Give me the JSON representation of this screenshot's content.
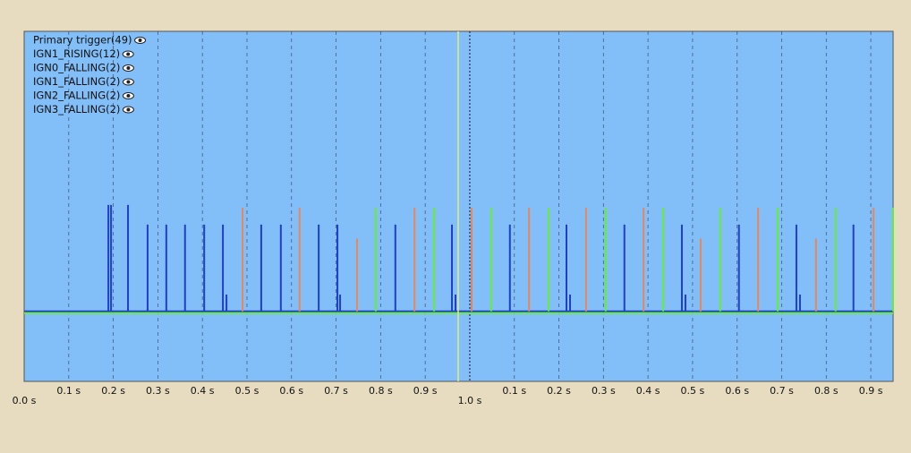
{
  "chart_data": {
    "type": "pulse",
    "xlim": [
      0,
      1.95
    ],
    "ylim": [
      -0.25,
      1
    ],
    "xticks": [
      {
        "value": 0,
        "label": "0.0 s"
      },
      {
        "value": 0.1,
        "label": "0.1 s"
      },
      {
        "value": 0.2,
        "label": "0.2 s"
      },
      {
        "value": 0.3,
        "label": "0.3 s"
      },
      {
        "value": 0.4,
        "label": "0.4 s"
      },
      {
        "value": 0.5,
        "label": "0.5 s"
      },
      {
        "value": 0.6,
        "label": "0.6 s"
      },
      {
        "value": 0.7,
        "label": "0.7 s"
      },
      {
        "value": 0.8,
        "label": "0.8 s"
      },
      {
        "value": 0.9,
        "label": "0.9 s"
      },
      {
        "value": 1.0,
        "label": "1.0 s"
      },
      {
        "value": 1.1,
        "label": "0.1 s"
      },
      {
        "value": 1.2,
        "label": "0.2 s"
      },
      {
        "value": 1.3,
        "label": "0.3 s"
      },
      {
        "value": 1.4,
        "label": "0.4 s"
      },
      {
        "value": 1.5,
        "label": "0.5 s"
      },
      {
        "value": 1.6,
        "label": "0.6 s"
      },
      {
        "value": 1.7,
        "label": "0.7 s"
      },
      {
        "value": 1.8,
        "label": "0.8 s"
      },
      {
        "value": 1.9,
        "label": "0.9 s"
      }
    ],
    "cursor": 0.974,
    "series": [
      {
        "name": "Primary trigger(49)",
        "color": "#1f3fc8",
        "x": [
          0.189,
          0.195,
          0.233,
          0.277,
          0.319,
          0.361,
          0.404,
          0.446,
          0.454,
          0.532,
          0.576,
          0.661,
          0.703,
          0.709,
          0.833,
          0.96,
          0.968,
          1.004,
          1.09,
          1.217,
          1.225,
          1.347,
          1.476,
          1.484,
          1.604,
          1.733,
          1.741,
          1.861
        ],
        "values": [
          0.38,
          0.38,
          0.38,
          0.31,
          0.31,
          0.31,
          0.31,
          0.31,
          0.06,
          0.31,
          0.31,
          0.31,
          0.31,
          0.06,
          0.31,
          0.31,
          0.06,
          0.31,
          0.31,
          0.31,
          0.06,
          0.31,
          0.31,
          0.06,
          0.31,
          0.31,
          0.06,
          0.31
        ]
      },
      {
        "name": "IGN1_RISING(12)",
        "color": "#e8875a",
        "x": [
          0.49,
          0.618,
          0.747,
          0.876,
          1.004,
          1.133,
          1.261,
          1.39,
          1.518,
          1.647,
          1.777,
          1.906
        ],
        "values": [
          0.37,
          0.37,
          0.26,
          0.37,
          0.37,
          0.37,
          0.37,
          0.37,
          0.26,
          0.37,
          0.26,
          0.37
        ]
      },
      {
        "name": "IGN0_FALLING(2)",
        "color": "#66ee33",
        "x": [
          0.789,
          1.305,
          1.821
        ],
        "values": [
          0.37,
          0.37,
          0.37
        ]
      },
      {
        "name": "IGN1_FALLING(2)",
        "color": "#66ee33",
        "x": [
          0.92,
          1.434,
          1.95
        ],
        "values": [
          0.37,
          0.37,
          0.37
        ]
      },
      {
        "name": "IGN2_FALLING(2)",
        "color": "#66ee33",
        "x": [
          1.048,
          1.562
        ],
        "values": [
          0.37,
          0.37
        ]
      },
      {
        "name": "IGN3_FALLING(2)",
        "color": "#66ee33",
        "x": [
          1.177,
          1.691
        ],
        "values": [
          0.37,
          0.37
        ]
      }
    ]
  }
}
